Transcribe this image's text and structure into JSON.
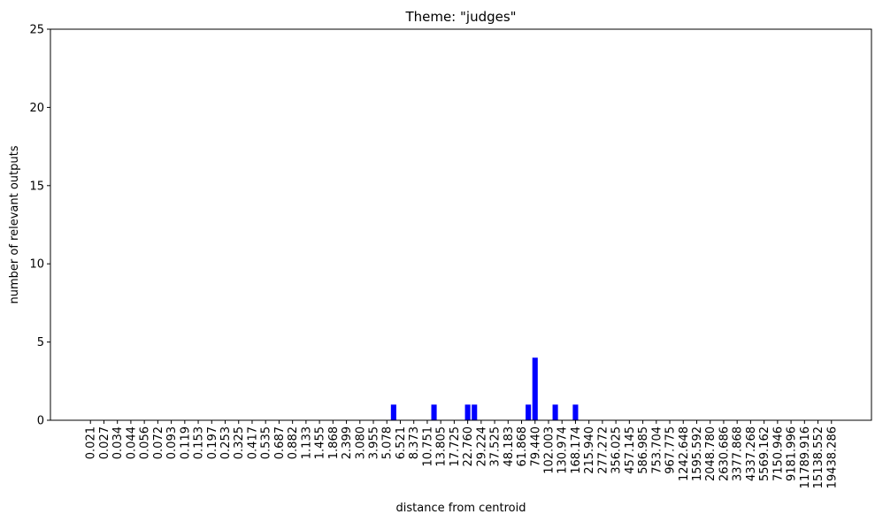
{
  "chart_data": {
    "type": "bar",
    "title": "Theme: \"judges\"",
    "x_label": "distance from centroid",
    "y_label": "number of relevant outputs",
    "categories": [
      "0.021",
      null,
      "0.027",
      null,
      "0.034",
      null,
      "0.044",
      null,
      "0.056",
      null,
      "0.072",
      null,
      "0.093",
      null,
      "0.119",
      null,
      "0.153",
      null,
      "0.197",
      null,
      "0.253",
      null,
      "0.325",
      null,
      "0.417",
      null,
      "0.535",
      null,
      "0.687",
      null,
      "0.882",
      null,
      "1.133",
      null,
      "1.455",
      null,
      "1.868",
      null,
      "2.399",
      null,
      "3.080",
      null,
      "3.955",
      null,
      "5.078",
      null,
      "6.521",
      null,
      "8.373",
      null,
      "10.751",
      null,
      "13.805",
      null,
      "17.725",
      null,
      "22.760",
      null,
      "29.224",
      null,
      "37.525",
      null,
      "48.183",
      null,
      "61.868",
      null,
      "79.440",
      null,
      "102.003",
      null,
      "130.974",
      null,
      "168.174",
      null,
      "215.940",
      null,
      "277.272",
      null,
      "356.025",
      null,
      "457.145",
      null,
      "586.985",
      null,
      "753.704",
      null,
      "967.775",
      null,
      "1242.648",
      null,
      "1595.592",
      null,
      "2048.780",
      null,
      "2630.686",
      null,
      "3377.868",
      null,
      "4337.268",
      null,
      "5569.162",
      null,
      "7150.946",
      null,
      "9181.996",
      null,
      "11789.916",
      null,
      "15138.552",
      null,
      "19438.286"
    ],
    "values": [
      0,
      0,
      0,
      0,
      0,
      0,
      0,
      0,
      0,
      0,
      0,
      0,
      0,
      0,
      0,
      0,
      0,
      0,
      0,
      0,
      0,
      0,
      0,
      0,
      0,
      0,
      0,
      0,
      0,
      0,
      0,
      0,
      0,
      0,
      0,
      0,
      0,
      0,
      0,
      0,
      0,
      0,
      0,
      0,
      0,
      1,
      0,
      0,
      0,
      0,
      0,
      1,
      0,
      0,
      0,
      0,
      1,
      1,
      0,
      0,
      0,
      0,
      0,
      0,
      0,
      1,
      4,
      0,
      0,
      1,
      0,
      0,
      1,
      0,
      0,
      0,
      0,
      0,
      0,
      0,
      0,
      0,
      0,
      0,
      0,
      0,
      0,
      0,
      0,
      0,
      0,
      0,
      0,
      0,
      0,
      0,
      0,
      0,
      0,
      0,
      0,
      0,
      0,
      0,
      0,
      0,
      0,
      0,
      0,
      0,
      0
    ],
    "color": "#0000ff",
    "ylim": [
      0,
      25
    ],
    "yticks": [
      0,
      5,
      10,
      15,
      20,
      25
    ],
    "grid": false
  }
}
